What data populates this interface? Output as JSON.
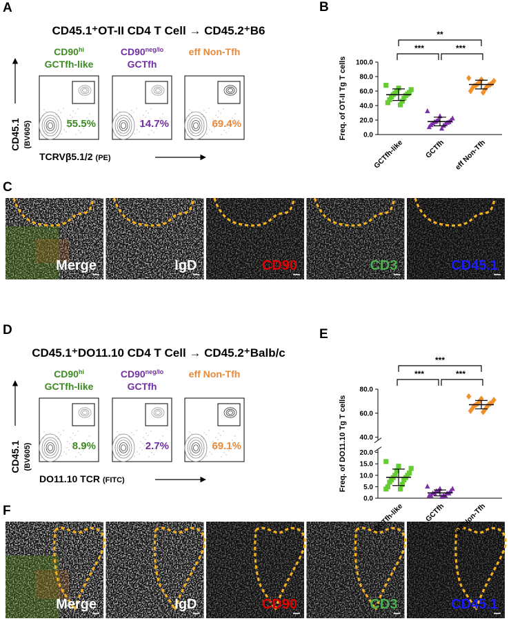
{
  "panels": [
    {
      "letter": "A",
      "title": "CD45.1⁺OT-II CD4 T Cell → CD45.2⁺B6",
      "y_label": "CD45.1",
      "y_label_note": "(BV605)",
      "x_label": "TCRVβ5.1/2",
      "x_label_note": "(PE)",
      "gates": [
        {
          "line1": "CD90",
          "line1_sup": "hi",
          "line2": "GCTfh-like",
          "percent": "55.5%",
          "color": "#3d8a23"
        },
        {
          "line1": "CD90",
          "line1_sup": "neg/lo",
          "line2": "GCTfh",
          "percent": "14.7%",
          "color": "#7030a0"
        },
        {
          "line1": "eff Non-Tfh",
          "percent": "69.4%",
          "color": "#e8893a"
        }
      ]
    },
    {
      "letter": "C",
      "channels": [
        {
          "name": "Merge",
          "color": "#ffffff"
        },
        {
          "name": "IgD",
          "color": "#ffffff"
        },
        {
          "name": "CD90",
          "color": "#e00000"
        },
        {
          "name": "CD3",
          "color": "#4caf50"
        },
        {
          "name": "CD45.1",
          "color": "#1a1aff"
        }
      ]
    },
    {
      "letter": "D",
      "title": "CD45.1⁺DO11.10 CD4 T Cell → CD45.2⁺Balb/c",
      "y_label": "CD45.1",
      "y_label_note": "(BV605)",
      "x_label": "DO11.10 TCR",
      "x_label_note": "(FITC)",
      "gates": [
        {
          "line1": "CD90",
          "line1_sup": "hi",
          "line2": "GCTfh-like",
          "percent": "8.9%",
          "color": "#3d8a23"
        },
        {
          "line1": "CD90",
          "line1_sup": "neg/lo",
          "line2": "GCTfh",
          "percent": "2.7%",
          "color": "#7030a0"
        },
        {
          "line1": "eff Non-Tfh",
          "percent": "69.1%",
          "color": "#e8893a"
        }
      ]
    },
    {
      "letter": "F",
      "channels": [
        {
          "name": "Merge",
          "color": "#ffffff"
        },
        {
          "name": "IgD",
          "color": "#ffffff"
        },
        {
          "name": "CD90",
          "color": "#e00000"
        },
        {
          "name": "CD3",
          "color": "#4caf50"
        },
        {
          "name": "CD45.1",
          "color": "#1a1aff"
        }
      ]
    }
  ],
  "chart_data": [
    {
      "letter": "B",
      "type": "scatter",
      "y_label": "Freq. of OT-II Tg T cells",
      "categories": [
        "GCTfh-like",
        "GCTfh",
        "eff Non-Tfh"
      ],
      "groups": [
        {
          "values": [
            68,
            64,
            62,
            60,
            58,
            57,
            56,
            55,
            54,
            52,
            50,
            48,
            46,
            44,
            41
          ],
          "mean": 55,
          "sd": 8,
          "color": "#66cc33",
          "marker": "square"
        },
        {
          "values": [
            32,
            25,
            22,
            20,
            19,
            18,
            17,
            17,
            16,
            15,
            14,
            13,
            12,
            10,
            8
          ],
          "mean": 18,
          "sd": 6,
          "color": "#7b2fa8",
          "marker": "triangle"
        },
        {
          "values": [
            78,
            76,
            74,
            72,
            71,
            70,
            69,
            68,
            68,
            67,
            66,
            64,
            62,
            60,
            58
          ],
          "mean": 69,
          "sd": 6,
          "color": "#f0902a",
          "marker": "diamond"
        }
      ],
      "ylim": [
        0,
        100
      ],
      "yticks": [
        {
          "value": 0,
          "label": "0.0"
        },
        {
          "value": 20,
          "label": "20.0"
        },
        {
          "value": 40,
          "label": "40.0"
        },
        {
          "value": 60,
          "label": "60.0"
        },
        {
          "value": 80,
          "label": "80.0"
        },
        {
          "value": 100,
          "label": "100.0"
        }
      ],
      "brackets": [
        {
          "from": "GCTfh-like",
          "to": "eff Non-Tfh",
          "label": "**"
        },
        {
          "from": "GCTfh-like",
          "to": "GCTfh",
          "label": "***"
        },
        {
          "from": "GCTfh",
          "to": "eff Non-Tfh",
          "label": "***"
        }
      ]
    },
    {
      "letter": "E",
      "type": "scatter",
      "y_label": "Freq. of DO11.10 Tg T cells",
      "categories": [
        "GCTfh-like",
        "GCTfh",
        "eff Non-Tfh"
      ],
      "groups": [
        {
          "values": [
            16,
            14,
            13,
            12,
            11,
            10,
            10,
            9,
            9,
            8,
            8,
            7,
            6,
            5,
            4,
            4
          ],
          "mean": 9.1,
          "sd": 3.6,
          "color": "#66cc33",
          "marker": "square"
        },
        {
          "values": [
            5,
            4,
            4,
            3,
            3,
            3,
            2,
            2,
            2,
            2,
            1,
            1,
            1,
            1,
            0.5
          ],
          "mean": 2.3,
          "sd": 1.3,
          "color": "#7b2fa8",
          "marker": "triangle"
        },
        {
          "values": [
            74,
            72,
            71,
            70,
            69,
            68,
            68,
            67,
            67,
            66,
            65,
            64,
            63,
            62,
            61
          ],
          "mean": 67.1,
          "sd": 3.5,
          "color": "#f0902a",
          "marker": "diamond"
        }
      ],
      "ylim": [
        0,
        80
      ],
      "axis_break": [
        20,
        40
      ],
      "yticks": [
        {
          "value": 0,
          "label": "0.0"
        },
        {
          "value": 5,
          "label": "5.0"
        },
        {
          "value": 10,
          "label": "10.0"
        },
        {
          "value": 15,
          "label": "15.0"
        },
        {
          "value": 20,
          "label": "20.0"
        },
        {
          "value": 40,
          "label": "40.0"
        },
        {
          "value": 60,
          "label": "60.0"
        },
        {
          "value": 80,
          "label": "80.0"
        }
      ],
      "brackets": [
        {
          "from": "GCTfh-like",
          "to": "eff Non-Tfh",
          "label": "***"
        },
        {
          "from": "GCTfh-like",
          "to": "GCTfh",
          "label": "***"
        },
        {
          "from": "GCTfh",
          "to": "eff Non-Tfh",
          "label": "***"
        }
      ]
    }
  ]
}
